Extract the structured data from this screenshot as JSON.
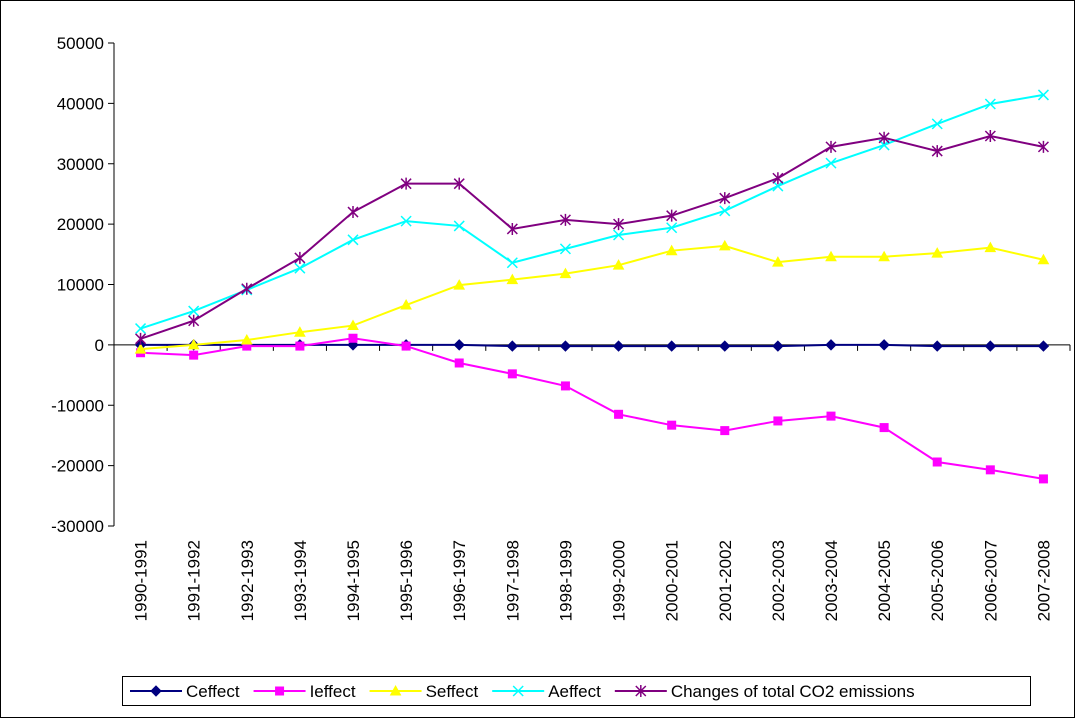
{
  "chart_data": {
    "type": "line",
    "categories": [
      "1990-1991",
      "1991-1992",
      "1992-1993",
      "1993-1994",
      "1994-1995",
      "1995-1996",
      "1996-1997",
      "1997-1998",
      "1998-1999",
      "1999-2000",
      "2000-2001",
      "2001-2002",
      "2002-2003",
      "2003-2004",
      "2004-2005",
      "2005-2006",
      "2006-2007",
      "2007-2008"
    ],
    "series": [
      {
        "name": "Ceffect",
        "color": "#000080",
        "marker": "diamond",
        "values": [
          0,
          0,
          0,
          0,
          0,
          0,
          0,
          -200,
          -200,
          -200,
          -200,
          -200,
          -200,
          0,
          0,
          -200,
          -200,
          -200
        ]
      },
      {
        "name": "Ieffect",
        "color": "#ff00ff",
        "marker": "square",
        "values": [
          -1300,
          -1700,
          -200,
          -200,
          1100,
          -200,
          -3000,
          -4800,
          -6800,
          -11500,
          -13300,
          -14200,
          -12600,
          -11800,
          -13700,
          -19400,
          -20700,
          -22200
        ]
      },
      {
        "name": "Seffect",
        "color": "#ffff00",
        "marker": "triangle",
        "values": [
          -700,
          0,
          800,
          2100,
          3200,
          6600,
          9900,
          10800,
          11800,
          13200,
          15600,
          16400,
          13700,
          14600,
          14600,
          15200,
          16100,
          14100
        ]
      },
      {
        "name": "Aeffect",
        "color": "#00ffff",
        "marker": "x",
        "values": [
          2700,
          5600,
          9100,
          12700,
          17400,
          20500,
          19700,
          13600,
          15900,
          18200,
          19400,
          22200,
          26300,
          30100,
          33100,
          36600,
          39900,
          41400
        ]
      },
      {
        "name": "Changes of total CO2 emissions",
        "color": "#800080",
        "marker": "asterisk",
        "values": [
          1000,
          4000,
          9300,
          14400,
          22000,
          26700,
          26700,
          19200,
          20700,
          20000,
          21400,
          24300,
          27600,
          32800,
          34300,
          32100,
          34600,
          32800
        ]
      }
    ],
    "ylim": [
      -30000,
      50000
    ],
    "yticks": [
      -30000,
      -20000,
      -10000,
      0,
      10000,
      20000,
      30000,
      40000,
      50000
    ],
    "grid": false,
    "legend": "bottom"
  }
}
